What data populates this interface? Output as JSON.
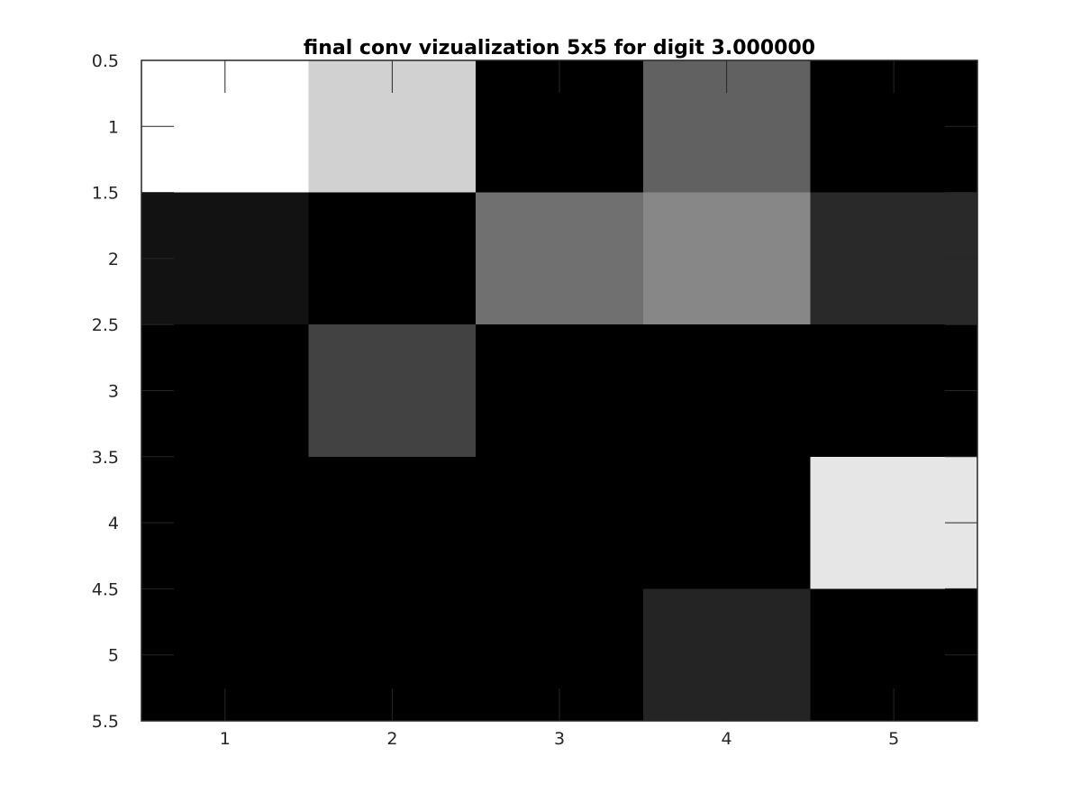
{
  "chart_data": {
    "type": "heatmap",
    "title": "final conv vizualization 5x5 for digit 3.000000",
    "xlabel": "",
    "ylabel": "",
    "colormap": "gray",
    "x_ticks": [
      "1",
      "2",
      "3",
      "4",
      "5"
    ],
    "y_ticks": [
      "0.5",
      "1",
      "1.5",
      "2",
      "2.5",
      "3",
      "3.5",
      "4",
      "4.5",
      "5",
      "5.5"
    ],
    "xlim": [
      0.5,
      5.5
    ],
    "ylim": [
      0.5,
      5.5
    ],
    "y_axis_direction": "reversed",
    "grid": false,
    "rows": [
      1,
      2,
      3,
      4,
      5
    ],
    "cols": [
      1,
      2,
      3,
      4,
      5
    ],
    "values": [
      [
        1.0,
        0.82,
        0.0,
        0.38,
        0.0
      ],
      [
        0.07,
        0.0,
        0.44,
        0.53,
        0.16
      ],
      [
        0.0,
        0.26,
        0.0,
        0.0,
        0.0
      ],
      [
        0.0,
        0.0,
        0.0,
        0.0,
        0.9
      ],
      [
        0.0,
        0.0,
        0.0,
        0.14,
        0.0
      ]
    ]
  }
}
